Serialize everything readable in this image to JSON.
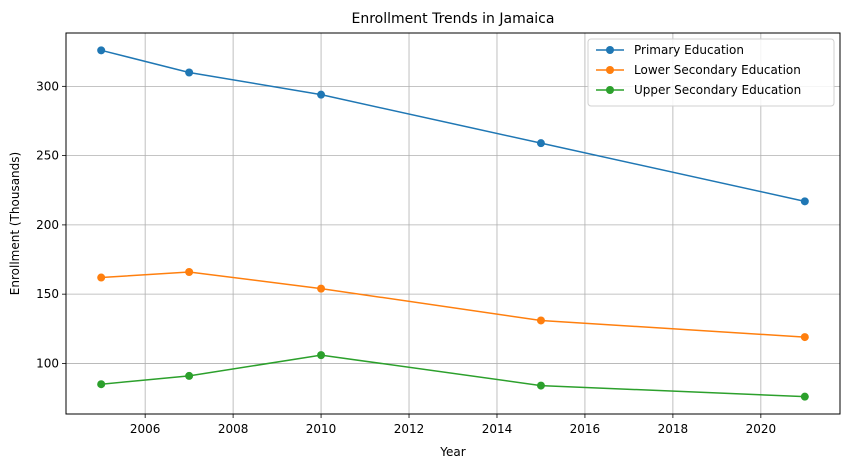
{
  "chart_data": {
    "type": "line",
    "title": "Enrollment Trends in Jamaica",
    "xlabel": "Year",
    "ylabel": "Enrollment (Thousands)",
    "x": [
      2005,
      2007,
      2010,
      2015,
      2021
    ],
    "xlim": [
      2004.2,
      2021.8
    ],
    "ylim": [
      63.5,
      338.5
    ],
    "xticks": [
      2006,
      2008,
      2010,
      2012,
      2014,
      2016,
      2018,
      2020
    ],
    "yticks": [
      100,
      150,
      200,
      250,
      300
    ],
    "grid": true,
    "legend_position": "top-right",
    "series": [
      {
        "name": "Primary Education",
        "color": "#1f77b4",
        "values": [
          326,
          310,
          294,
          259,
          217
        ]
      },
      {
        "name": "Lower Secondary Education",
        "color": "#ff7f0e",
        "values": [
          162,
          166,
          154,
          131,
          119
        ]
      },
      {
        "name": "Upper Secondary Education",
        "color": "#2ca02c",
        "values": [
          85,
          91,
          106,
          84,
          76
        ]
      }
    ]
  }
}
